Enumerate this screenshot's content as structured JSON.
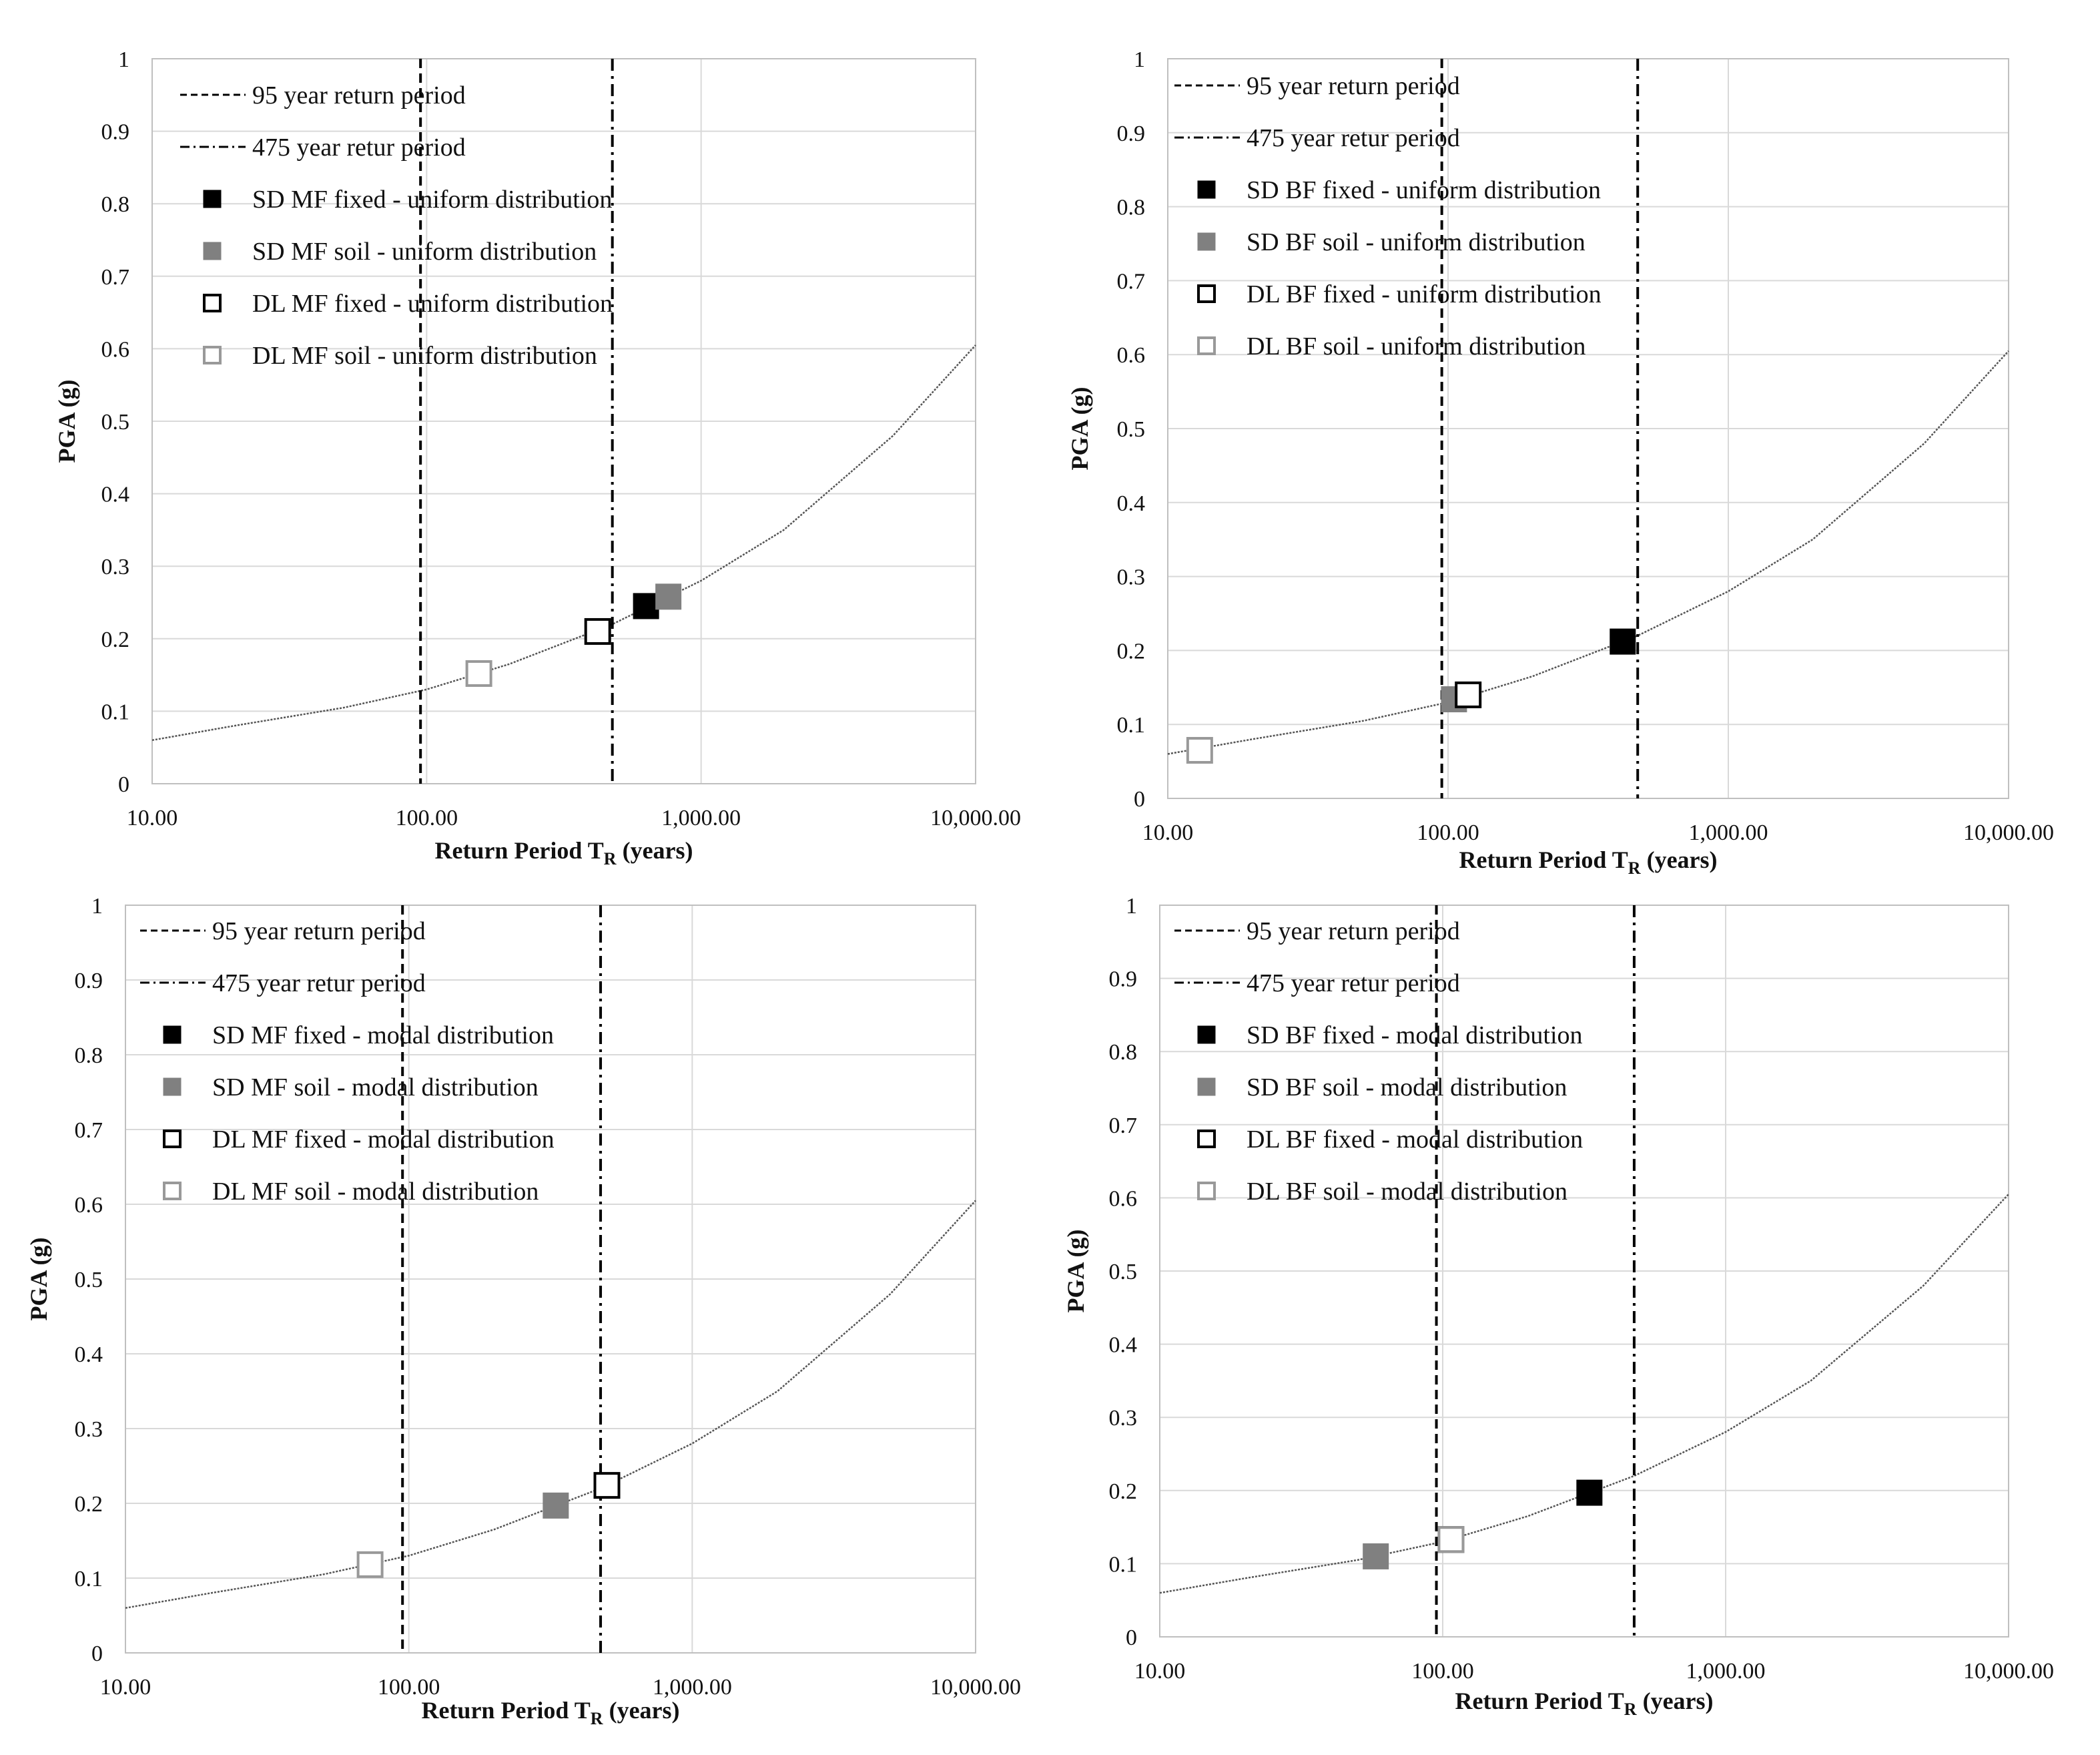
{
  "figure": {
    "colors": {
      "grid": "#d9d9d9",
      "frame": "#bfbfbf",
      "curve": "#555555",
      "dashed": "#000000",
      "black": "#000000",
      "gray": "#808080",
      "light_gray": "#999999"
    }
  },
  "chart_data": [
    {
      "type": "scatter",
      "title": "",
      "xlabel_main": "Return Period T",
      "xlabel_sub": "R",
      "xlabel_tail": " (years)",
      "ylabel": "PGA (g)",
      "xscale": "log",
      "xlim": [
        10,
        10000
      ],
      "ylim": [
        0,
        1
      ],
      "x_ticks": [
        10,
        100,
        1000,
        10000
      ],
      "x_tick_labels": [
        "10.00",
        "100.00",
        "1,000.00",
        "10,000.00"
      ],
      "y_ticks": [
        0,
        0.1,
        0.2,
        0.3,
        0.4,
        0.5,
        0.6,
        0.7,
        0.8,
        0.9,
        1
      ],
      "y_tick_labels": [
        "0",
        "0.1",
        "0.2",
        "0.3",
        "0.4",
        "0.5",
        "0.6",
        "0.7",
        "0.8",
        "0.9",
        "1"
      ],
      "grid": true,
      "legend_position": "top-left",
      "hazard_curve": {
        "x": [
          10,
          20,
          50,
          100,
          200,
          475,
          1000,
          2000,
          5000,
          10000
        ],
        "y": [
          0.06,
          0.08,
          0.105,
          0.13,
          0.165,
          0.22,
          0.28,
          0.35,
          0.48,
          0.605
        ]
      },
      "vlines": [
        {
          "name": "95 year return period",
          "x": 95,
          "style": "dashed"
        },
        {
          "name": "475 year retur period",
          "x": 475,
          "style": "dashdot"
        }
      ],
      "series": [
        {
          "name": "SD MF fixed - uniform distribution",
          "marker": "filled-black",
          "x": 630,
          "y": 0.245
        },
        {
          "name": "SD MF soil - uniform distribution",
          "marker": "filled-gray",
          "x": 760,
          "y": 0.258
        },
        {
          "name": "DL MF fixed - uniform distribution",
          "marker": "open-black",
          "x": 420,
          "y": 0.21
        },
        {
          "name": "DL MF soil - uniform distribution",
          "marker": "open-gray",
          "x": 155,
          "y": 0.152
        }
      ]
    },
    {
      "type": "scatter",
      "title": "",
      "xlabel_main": "Return Period T",
      "xlabel_sub": "R",
      "xlabel_tail": " (years)",
      "ylabel": "PGA (g)",
      "xscale": "log",
      "xlim": [
        10,
        10000
      ],
      "ylim": [
        0,
        1
      ],
      "x_ticks": [
        10,
        100,
        1000,
        10000
      ],
      "x_tick_labels": [
        "10.00",
        "100.00",
        "1,000.00",
        "10,000.00"
      ],
      "y_ticks": [
        0,
        0.1,
        0.2,
        0.3,
        0.4,
        0.5,
        0.6,
        0.7,
        0.8,
        0.9,
        1
      ],
      "y_tick_labels": [
        "0",
        "0.1",
        "0.2",
        "0.3",
        "0.4",
        "0.5",
        "0.6",
        "0.7",
        "0.8",
        "0.9",
        "1"
      ],
      "grid": true,
      "legend_position": "top-left",
      "hazard_curve": {
        "x": [
          10,
          20,
          50,
          100,
          200,
          475,
          1000,
          2000,
          5000,
          10000
        ],
        "y": [
          0.06,
          0.08,
          0.105,
          0.13,
          0.165,
          0.22,
          0.28,
          0.35,
          0.48,
          0.605
        ]
      },
      "vlines": [
        {
          "name": "95 year return period",
          "x": 95,
          "style": "dashed"
        },
        {
          "name": "475 year retur period",
          "x": 475,
          "style": "dashdot"
        }
      ],
      "series": [
        {
          "name": "SD BF fixed - uniform distribution",
          "marker": "filled-black",
          "x": 420,
          "y": 0.212
        },
        {
          "name": "SD BF soil - uniform distribution",
          "marker": "filled-gray",
          "x": 105,
          "y": 0.134
        },
        {
          "name": "DL BF fixed - uniform distribution",
          "marker": "open-black",
          "x": 118,
          "y": 0.14
        },
        {
          "name": "DL BF soil - uniform distribution",
          "marker": "open-gray",
          "x": 13,
          "y": 0.065
        }
      ]
    },
    {
      "type": "scatter",
      "title": "",
      "xlabel_main": "Return Period T",
      "xlabel_sub": "R",
      "xlabel_tail": " (years)",
      "ylabel": "PGA (g)",
      "xscale": "log",
      "xlim": [
        10,
        10000
      ],
      "ylim": [
        0,
        1
      ],
      "x_ticks": [
        10,
        100,
        1000,
        10000
      ],
      "x_tick_labels": [
        "10.00",
        "100.00",
        "1,000.00",
        "10,000.00"
      ],
      "y_ticks": [
        0,
        0.1,
        0.2,
        0.3,
        0.4,
        0.5,
        0.6,
        0.7,
        0.8,
        0.9,
        1
      ],
      "y_tick_labels": [
        "0",
        "0.1",
        "0.2",
        "0.3",
        "0.4",
        "0.5",
        "0.6",
        "0.7",
        "0.8",
        "0.9",
        "1"
      ],
      "grid": true,
      "legend_position": "top-left",
      "hazard_curve": {
        "x": [
          10,
          20,
          50,
          100,
          200,
          475,
          1000,
          2000,
          5000,
          10000
        ],
        "y": [
          0.06,
          0.08,
          0.105,
          0.13,
          0.165,
          0.22,
          0.28,
          0.35,
          0.48,
          0.605
        ]
      },
      "vlines": [
        {
          "name": "95 year return period",
          "x": 95,
          "style": "dashed"
        },
        {
          "name": "475 year retur period",
          "x": 475,
          "style": "dashdot"
        }
      ],
      "series": [
        {
          "name": "SD MF fixed - modal distribution",
          "marker": "filled-black",
          "x": 500,
          "y": 0.224
        },
        {
          "name": "SD MF soil - modal distribution",
          "marker": "filled-gray",
          "x": 330,
          "y": 0.197
        },
        {
          "name": "DL MF fixed - modal distribution",
          "marker": "open-black",
          "x": 500,
          "y": 0.224
        },
        {
          "name": "DL MF soil - modal distribution",
          "marker": "open-gray",
          "x": 73,
          "y": 0.118
        }
      ]
    },
    {
      "type": "scatter",
      "title": "",
      "xlabel_main": "Return Period T",
      "xlabel_sub": "R",
      "xlabel_tail": " (years)",
      "ylabel": "PGA (g)",
      "xscale": "log",
      "xlim": [
        10,
        10000
      ],
      "ylim": [
        0,
        1
      ],
      "x_ticks": [
        10,
        100,
        1000,
        10000
      ],
      "x_tick_labels": [
        "10.00",
        "100.00",
        "1,000.00",
        "10,000.00"
      ],
      "y_ticks": [
        0,
        0.1,
        0.2,
        0.3,
        0.4,
        0.5,
        0.6,
        0.7,
        0.8,
        0.9,
        1
      ],
      "y_tick_labels": [
        "0",
        "0.1",
        "0.2",
        "0.3",
        "0.4",
        "0.5",
        "0.6",
        "0.7",
        "0.8",
        "0.9",
        "1"
      ],
      "grid": true,
      "legend_position": "top-left",
      "hazard_curve": {
        "x": [
          10,
          20,
          50,
          100,
          200,
          475,
          1000,
          2000,
          5000,
          10000
        ],
        "y": [
          0.06,
          0.08,
          0.105,
          0.13,
          0.165,
          0.22,
          0.28,
          0.35,
          0.48,
          0.605
        ]
      },
      "vlines": [
        {
          "name": "95 year return period",
          "x": 95,
          "style": "dashed"
        },
        {
          "name": "475 year retur period",
          "x": 475,
          "style": "dashdot"
        }
      ],
      "series": [
        {
          "name": "SD BF fixed - modal distribution",
          "marker": "filled-black",
          "x": 330,
          "y": 0.197
        },
        {
          "name": "SD BF soil - modal distribution",
          "marker": "filled-gray",
          "x": 58,
          "y": 0.11
        },
        {
          "name": "DL BF fixed - modal distribution",
          "marker": "open-black",
          "x": 107,
          "y": 0.133
        },
        {
          "name": "DL BF soil - modal distribution",
          "marker": "open-gray",
          "x": 107,
          "y": 0.133
        }
      ]
    }
  ]
}
